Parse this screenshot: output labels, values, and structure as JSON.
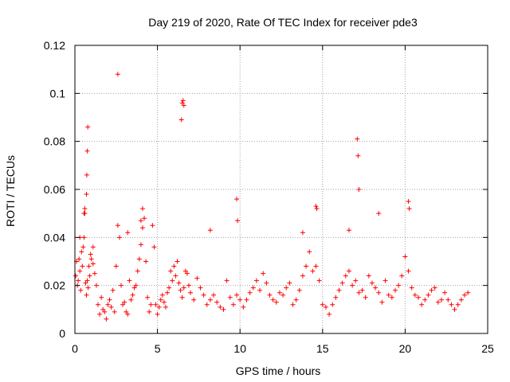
{
  "chart_data": {
    "type": "scatter",
    "title": "Day 219 of 2020, Rate Of TEC Index for receiver pde3",
    "xlabel": "GPS time / hours",
    "ylabel": "ROTI / TECUs",
    "xlim": [
      0,
      25
    ],
    "ylim": [
      0,
      0.12
    ],
    "xticks": [
      0,
      5,
      10,
      15,
      20,
      25
    ],
    "xtick_labels": [
      "0",
      "5",
      "10",
      "15",
      "20",
      "25"
    ],
    "yticks": [
      0,
      0.02,
      0.04,
      0.06,
      0.08,
      0.1,
      0.12
    ],
    "ytick_labels": [
      "0",
      "0.02",
      "0.04",
      "0.06",
      "0.08",
      "0.1",
      "0.12"
    ],
    "grid": true,
    "marker": "+",
    "color": "#ff0000",
    "series": [
      {
        "x": [
          0.05,
          0.1,
          0.15,
          0.2,
          0.25,
          0.3,
          0.35,
          0.4,
          0.45,
          0.5,
          0.55,
          0.6,
          0.65,
          0.7,
          0.75,
          0.8,
          0.85,
          0.9,
          0.95,
          1.0,
          1.1,
          1.2,
          1.3,
          1.4,
          1.5,
          1.6,
          1.7,
          1.8,
          1.9,
          2.0,
          2.1,
          2.2,
          2.3,
          2.4,
          2.5,
          2.6,
          2.7,
          2.8,
          2.9,
          3.0,
          3.1,
          3.2,
          3.3,
          3.4,
          3.5,
          3.6,
          3.7,
          3.8,
          3.9,
          4.0,
          4.1,
          4.2,
          4.3,
          4.4,
          4.5,
          4.6,
          4.7,
          4.8,
          4.9,
          5.0,
          5.1,
          5.2,
          5.3,
          5.4,
          5.5,
          5.6,
          5.7,
          5.8,
          5.9,
          6.0,
          6.1,
          6.2,
          6.3,
          6.4,
          6.5,
          6.6,
          6.7,
          6.8,
          6.9,
          7.0,
          7.2,
          7.4,
          7.6,
          7.8,
          8.0,
          8.2,
          8.4,
          8.6,
          8.8,
          9.0,
          9.2,
          9.4,
          9.6,
          9.8,
          10.0,
          10.2,
          10.4,
          10.6,
          10.8,
          11.0,
          11.2,
          11.4,
          11.6,
          11.8,
          12.0,
          12.2,
          12.4,
          12.6,
          12.8,
          13.0,
          13.2,
          13.4,
          13.6,
          13.8,
          14.0,
          14.2,
          14.4,
          14.6,
          14.8,
          15.0,
          15.2,
          15.4,
          15.6,
          15.8,
          16.0,
          16.2,
          16.4,
          16.6,
          16.8,
          17.0,
          17.2,
          17.4,
          17.6,
          17.8,
          18.0,
          18.2,
          18.4,
          18.6,
          18.8,
          19.0,
          19.2,
          19.4,
          19.6,
          19.8,
          20.0,
          20.2,
          20.4,
          20.6,
          20.8,
          21.0,
          21.2,
          21.4,
          21.6,
          21.8,
          22.0,
          22.2,
          22.4,
          22.6,
          22.8,
          23.0,
          23.2,
          23.4,
          23.6,
          23.8,
          0.7,
          0.72,
          0.75,
          0.78,
          0.55,
          0.6,
          2.6,
          6.45,
          6.5,
          6.55,
          6.6,
          8.2,
          9.8,
          9.85,
          14.6,
          14.65,
          17.1,
          17.15,
          17.2,
          20.2,
          20.25,
          4.0,
          4.1,
          3.2,
          0.3,
          1.1,
          13.8,
          16.6,
          18.4
        ],
        "y": [
          0.024,
          0.03,
          0.02,
          0.022,
          0.031,
          0.026,
          0.018,
          0.034,
          0.028,
          0.036,
          0.04,
          0.05,
          0.021,
          0.016,
          0.022,
          0.019,
          0.028,
          0.024,
          0.033,
          0.031,
          0.029,
          0.025,
          0.02,
          0.012,
          0.008,
          0.015,
          0.01,
          0.009,
          0.006,
          0.012,
          0.014,
          0.011,
          0.018,
          0.009,
          0.028,
          0.045,
          0.04,
          0.02,
          0.012,
          0.013,
          0.009,
          0.008,
          0.022,
          0.014,
          0.016,
          0.019,
          0.02,
          0.026,
          0.031,
          0.037,
          0.052,
          0.048,
          0.03,
          0.015,
          0.009,
          0.012,
          0.045,
          0.036,
          0.012,
          0.008,
          0.011,
          0.014,
          0.016,
          0.013,
          0.011,
          0.017,
          0.019,
          0.026,
          0.022,
          0.028,
          0.024,
          0.03,
          0.021,
          0.018,
          0.015,
          0.019,
          0.026,
          0.025,
          0.02,
          0.017,
          0.014,
          0.023,
          0.019,
          0.016,
          0.012,
          0.014,
          0.016,
          0.013,
          0.011,
          0.01,
          0.022,
          0.015,
          0.012,
          0.016,
          0.014,
          0.011,
          0.014,
          0.017,
          0.019,
          0.022,
          0.018,
          0.025,
          0.021,
          0.016,
          0.014,
          0.013,
          0.017,
          0.016,
          0.019,
          0.021,
          0.012,
          0.014,
          0.018,
          0.024,
          0.028,
          0.034,
          0.026,
          0.028,
          0.022,
          0.012,
          0.011,
          0.008,
          0.012,
          0.015,
          0.018,
          0.021,
          0.024,
          0.026,
          0.02,
          0.022,
          0.017,
          0.018,
          0.015,
          0.024,
          0.021,
          0.019,
          0.017,
          0.013,
          0.022,
          0.016,
          0.015,
          0.018,
          0.02,
          0.024,
          0.032,
          0.026,
          0.019,
          0.016,
          0.015,
          0.012,
          0.014,
          0.016,
          0.018,
          0.019,
          0.013,
          0.014,
          0.017,
          0.014,
          0.012,
          0.01,
          0.012,
          0.014,
          0.016,
          0.017,
          0.058,
          0.066,
          0.076,
          0.086,
          0.05,
          0.052,
          0.108,
          0.089,
          0.096,
          0.097,
          0.095,
          0.043,
          0.056,
          0.047,
          0.053,
          0.052,
          0.081,
          0.074,
          0.06,
          0.055,
          0.052,
          0.047,
          0.044,
          0.042,
          0.04,
          0.036,
          0.042,
          0.043,
          0.05
        ]
      }
    ]
  }
}
